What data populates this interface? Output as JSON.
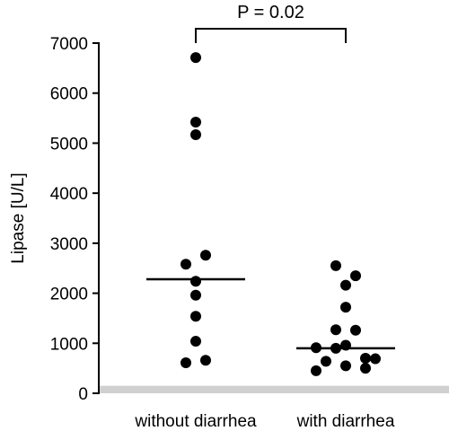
{
  "chart_data": {
    "type": "scatter",
    "ylabel": "Lipase [U/L]",
    "ylim": [
      0,
      7000
    ],
    "yticks": [
      0,
      1000,
      2000,
      3000,
      4000,
      5000,
      6000,
      7000
    ],
    "categories": [
      "without diarrhea",
      "with diarrhea"
    ],
    "series": [
      {
        "category": "without diarrhea",
        "median": 2280,
        "points": [
          {
            "offset": 0,
            "value": 6710
          },
          {
            "offset": 0,
            "value": 5420
          },
          {
            "offset": 0,
            "value": 5170
          },
          {
            "offset": 1,
            "value": 2760
          },
          {
            "offset": -1,
            "value": 2580
          },
          {
            "offset": 0,
            "value": 2240
          },
          {
            "offset": 0,
            "value": 1960
          },
          {
            "offset": 0,
            "value": 1540
          },
          {
            "offset": 0,
            "value": 1040
          },
          {
            "offset": -1,
            "value": 610
          },
          {
            "offset": 1,
            "value": 660
          }
        ]
      },
      {
        "category": "with diarrhea",
        "median": 900,
        "points": [
          {
            "offset": -1,
            "value": 2550
          },
          {
            "offset": 1,
            "value": 2350
          },
          {
            "offset": 0,
            "value": 2160
          },
          {
            "offset": 0,
            "value": 1720
          },
          {
            "offset": -1,
            "value": 1270
          },
          {
            "offset": 1,
            "value": 1260
          },
          {
            "offset": 0,
            "value": 960
          },
          {
            "offset": -3,
            "value": 910
          },
          {
            "offset": -1,
            "value": 900
          },
          {
            "offset": 2,
            "value": 700
          },
          {
            "offset": 3,
            "value": 690
          },
          {
            "offset": -2,
            "value": 640
          },
          {
            "offset": 0,
            "value": 550
          },
          {
            "offset": -3,
            "value": 450
          },
          {
            "offset": 2,
            "value": 500
          }
        ]
      }
    ],
    "significance": {
      "label": "P = 0.02",
      "between": [
        "without diarrhea",
        "with diarrhea"
      ]
    },
    "shaded_band": {
      "from": 0,
      "to": 150,
      "color": "#d0d0d0"
    },
    "colors": {
      "points": "#000000",
      "axis": "#000000"
    }
  }
}
